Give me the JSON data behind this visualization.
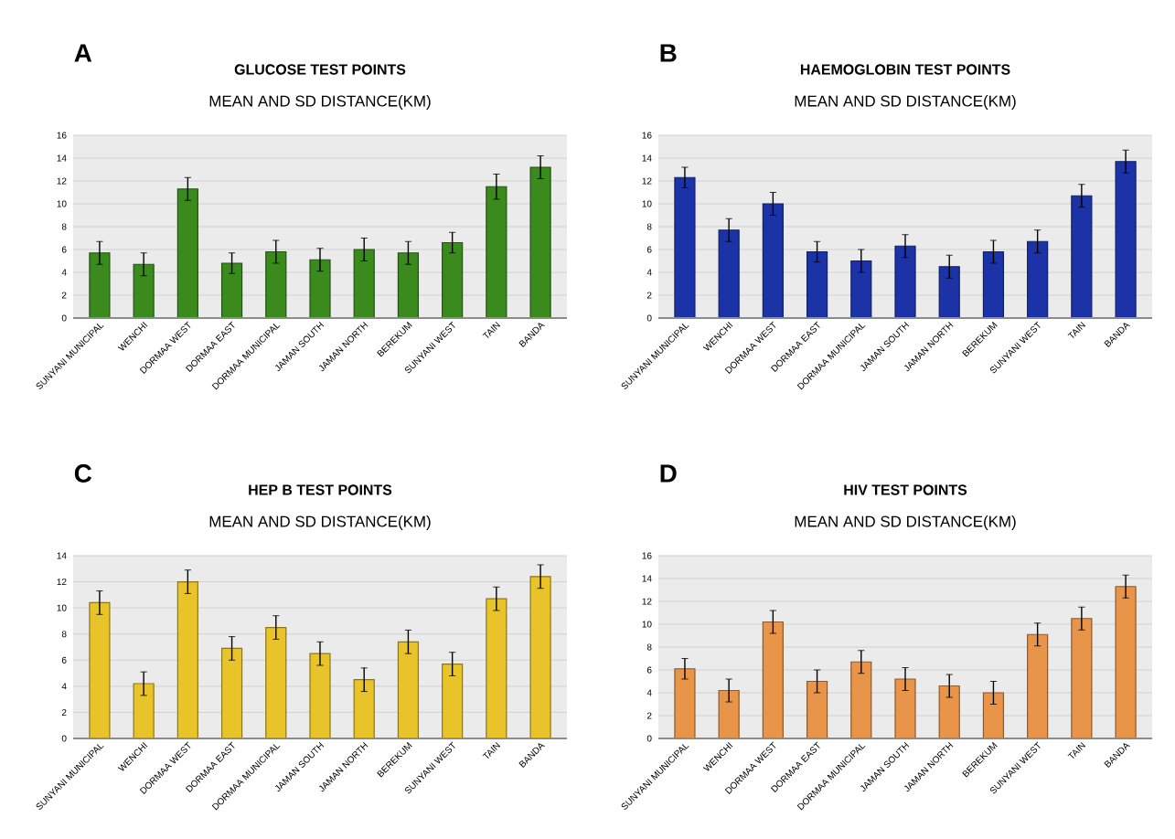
{
  "chart_data": [
    {
      "type": "bar",
      "title": "GLUCOSE TEST POINTS",
      "subtitle": "MEAN AND SD DISTANCE(KM)",
      "annotations": [
        "A"
      ],
      "categories": [
        "SUNYANI MUNICIPAL",
        "WENCHI",
        "DORMAA WEST",
        "DORMAA EAST",
        "DORMAA MUNICIPAL",
        "JAMAN SOUTH",
        "JAMAN NORTH",
        "BEREKUM",
        "SUNYANI WEST",
        "TAIN",
        "BANDA"
      ],
      "values": [
        5.7,
        4.7,
        11.3,
        4.8,
        5.8,
        5.1,
        6.0,
        5.7,
        6.6,
        11.5,
        13.2
      ],
      "errors": [
        1.0,
        1.0,
        1.0,
        0.9,
        1.0,
        1.0,
        1.0,
        1.0,
        0.9,
        1.1,
        1.0
      ],
      "color": "#3a8a1e",
      "ylim": [
        0,
        16
      ],
      "yticks": [
        0,
        2,
        4,
        6,
        8,
        10,
        12,
        14,
        16
      ],
      "grid": "y"
    },
    {
      "type": "bar",
      "title": "HAEMOGLOBIN TEST POINTS",
      "subtitle": "MEAN AND SD DISTANCE(KM)",
      "annotations": [
        "B"
      ],
      "categories": [
        "SUNYANI MUNICIPAL",
        "WENCHI",
        "DORMAA WEST",
        "DORMAA EAST",
        "DORMAA MUNICIPAL",
        "JAMAN SOUTH",
        "JAMAN NORTH",
        "BEREKUM",
        "SUNYANI WEST",
        "TAIN",
        "BANDA"
      ],
      "values": [
        12.3,
        7.7,
        10.0,
        5.8,
        5.0,
        6.3,
        4.5,
        5.8,
        6.7,
        10.7,
        13.7
      ],
      "errors": [
        0.9,
        1.0,
        1.0,
        0.9,
        1.0,
        1.0,
        1.0,
        1.0,
        1.0,
        1.0,
        1.0
      ],
      "color": "#1c33a8",
      "ylim": [
        0,
        16
      ],
      "yticks": [
        0,
        2,
        4,
        6,
        8,
        10,
        12,
        14,
        16
      ],
      "grid": "y"
    },
    {
      "type": "bar",
      "title": "HEP B TEST POINTS",
      "subtitle": "MEAN AND SD DISTANCE(KM)",
      "annotations": [
        "C"
      ],
      "categories": [
        "SUNYANI MUNICIPAL",
        "WENCHI",
        "DORMAA WEST",
        "DORMAA EAST",
        "DORMAA MUNICIPAL",
        "JAMAN SOUTH",
        "JAMAN NORTH",
        "BEREKUM",
        "SUNYANI WEST",
        "TAIN",
        "BANDA"
      ],
      "values": [
        10.4,
        4.2,
        12.0,
        6.9,
        8.5,
        6.5,
        4.5,
        7.4,
        5.7,
        10.7,
        12.4
      ],
      "errors": [
        0.9,
        0.9,
        0.9,
        0.9,
        0.9,
        0.9,
        0.9,
        0.9,
        0.9,
        0.9,
        0.9
      ],
      "color": "#e8c42a",
      "ylim": [
        0,
        14
      ],
      "yticks": [
        0,
        2,
        4,
        6,
        8,
        10,
        12,
        14
      ],
      "grid": "y"
    },
    {
      "type": "bar",
      "title": "HIV TEST POINTS",
      "subtitle": "MEAN AND SD DISTANCE(KM)",
      "annotations": [
        "D"
      ],
      "categories": [
        "SUNYANI MUNICIPAL",
        "WENCHI",
        "DORMAA WEST",
        "DORMAA EAST",
        "DORMAA MUNICIPAL",
        "JAMAN SOUTH",
        "JAMAN NORTH",
        "BEREKUM",
        "SUNYANI WEST",
        "TAIN",
        "BANDA"
      ],
      "values": [
        6.1,
        4.2,
        10.2,
        5.0,
        6.7,
        5.2,
        4.6,
        4.0,
        9.1,
        10.5,
        13.3
      ],
      "errors": [
        0.9,
        1.0,
        1.0,
        1.0,
        1.0,
        1.0,
        1.0,
        1.0,
        1.0,
        1.0,
        1.0
      ],
      "color": "#e8954a",
      "ylim": [
        0,
        16
      ],
      "yticks": [
        0,
        2,
        4,
        6,
        8,
        10,
        12,
        14,
        16
      ],
      "grid": "y"
    }
  ]
}
